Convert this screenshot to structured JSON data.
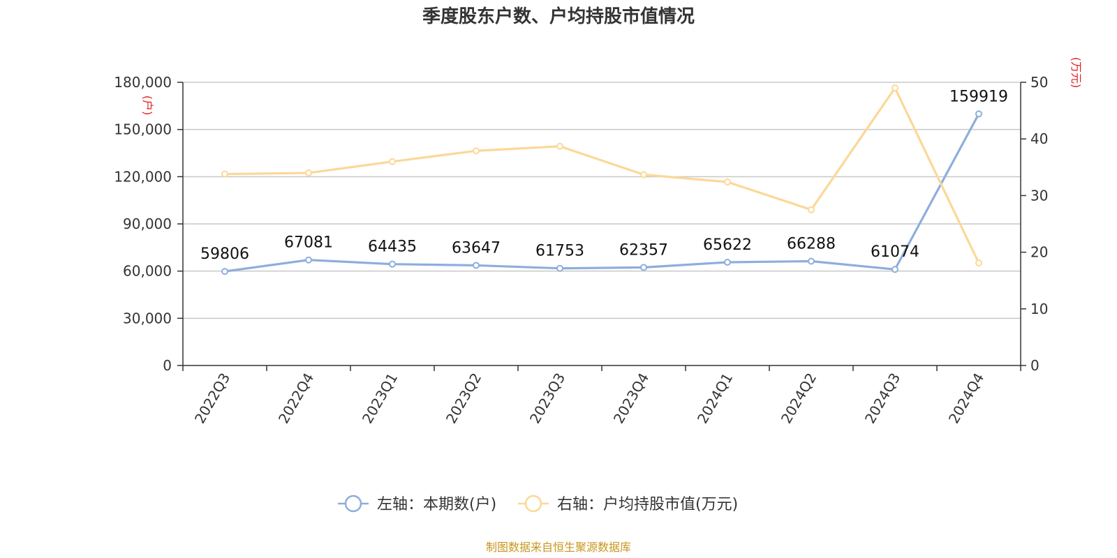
{
  "chart_data": {
    "type": "line",
    "title": "季度股东户数、户均持股市值情况",
    "categories": [
      "2022Q3",
      "2022Q4",
      "2023Q1",
      "2023Q2",
      "2023Q3",
      "2023Q4",
      "2024Q1",
      "2024Q2",
      "2024Q3",
      "2024Q4"
    ],
    "left_axis": {
      "unit": "(户)",
      "ylim": [
        0,
        180000
      ],
      "ticks": [
        "0",
        "30,000",
        "60,000",
        "90,000",
        "120,000",
        "150,000",
        "180,000"
      ]
    },
    "right_axis": {
      "unit": "(万元)",
      "ylim": [
        0,
        50
      ],
      "ticks": [
        "0",
        "10",
        "20",
        "30",
        "40",
        "50"
      ]
    },
    "series": [
      {
        "name": "左轴：本期数(户)",
        "axis": "left",
        "color": "#8eaedb",
        "values": [
          59806,
          67081,
          64435,
          63647,
          61753,
          62357,
          65622,
          66288,
          61074,
          159919
        ],
        "labels": [
          "59806",
          "67081",
          "64435",
          "63647",
          "61753",
          "62357",
          "65622",
          "66288",
          "61074",
          "159919"
        ]
      },
      {
        "name": "右轴：户均持股市值(万元)",
        "axis": "right",
        "color": "#fbd898",
        "values": [
          33.8,
          34.0,
          36.0,
          37.9,
          38.7,
          33.7,
          32.4,
          27.5,
          49.0,
          18.1
        ]
      }
    ],
    "grid": true,
    "legend_position": "bottom"
  },
  "source": "制图数据来自恒生聚源数据库"
}
